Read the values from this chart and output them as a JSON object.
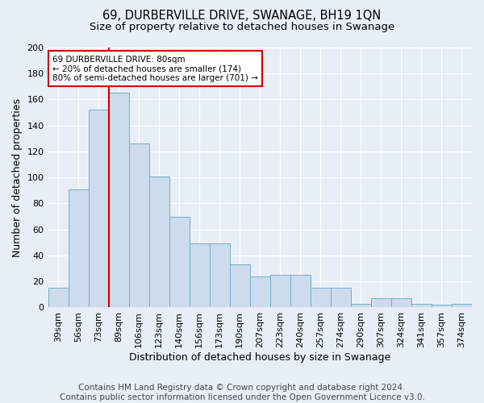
{
  "title": "69, DURBERVILLE DRIVE, SWANAGE, BH19 1QN",
  "subtitle": "Size of property relative to detached houses in Swanage",
  "xlabel": "Distribution of detached houses by size in Swanage",
  "ylabel": "Number of detached properties",
  "categories": [
    "39sqm",
    "56sqm",
    "73sqm",
    "89sqm",
    "106sqm",
    "123sqm",
    "140sqm",
    "156sqm",
    "173sqm",
    "190sqm",
    "207sqm",
    "223sqm",
    "240sqm",
    "257sqm",
    "274sqm",
    "290sqm",
    "307sqm",
    "324sqm",
    "341sqm",
    "357sqm",
    "374sqm"
  ],
  "values": [
    15,
    91,
    152,
    165,
    126,
    101,
    70,
    49,
    49,
    33,
    24,
    25,
    25,
    15,
    15,
    3,
    7,
    7,
    3,
    2,
    3
  ],
  "bar_color": "#ccdcec",
  "bar_edge_color": "#7aaac8",
  "background_color": "#e8eef8",
  "red_line_index": 2,
  "red_line_color": "#cc0000",
  "annotation_line1": "69 DURBERVILLE DRIVE: 80sqm",
  "annotation_line2": "← 20% of detached houses are smaller (174)",
  "annotation_line3": "80% of semi-detached houses are larger (701) →",
  "annotation_box_color": "#ffffff",
  "annotation_box_edge_color": "#cc0000",
  "footer_line1": "Contains HM Land Registry data © Crown copyright and database right 2024.",
  "footer_line2": "Contains public sector information licensed under the Open Government Licence v3.0.",
  "ylim": [
    0,
    200
  ],
  "yticks": [
    0,
    20,
    40,
    60,
    80,
    100,
    120,
    140,
    160,
    180,
    200
  ],
  "title_fontsize": 10.5,
  "subtitle_fontsize": 9.5,
  "axis_label_fontsize": 9,
  "tick_fontsize": 8,
  "footer_fontsize": 7.5
}
